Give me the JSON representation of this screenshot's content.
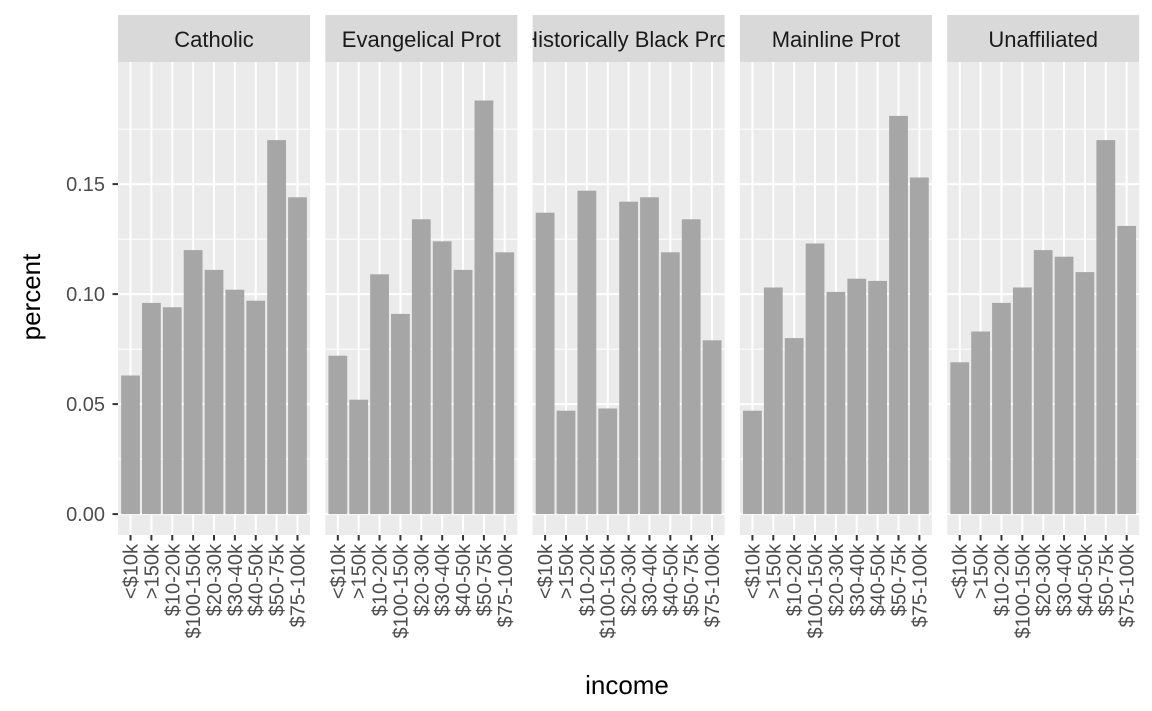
{
  "chart_data": {
    "type": "bar",
    "facet_by": "religion",
    "panels": [
      {
        "label": "Catholic",
        "values": [
          0.063,
          0.096,
          0.094,
          0.12,
          0.111,
          0.102,
          0.097,
          0.17,
          0.144
        ]
      },
      {
        "label": "Evangelical Prot",
        "values": [
          0.072,
          0.052,
          0.109,
          0.091,
          0.134,
          0.124,
          0.111,
          0.188,
          0.119
        ]
      },
      {
        "label": "Historically Black Prot",
        "values": [
          0.137,
          0.047,
          0.147,
          0.048,
          0.142,
          0.144,
          0.119,
          0.134,
          0.079
        ]
      },
      {
        "label": "Mainline Prot",
        "values": [
          0.047,
          0.103,
          0.08,
          0.123,
          0.101,
          0.107,
          0.106,
          0.181,
          0.153
        ]
      },
      {
        "label": "Unaffiliated",
        "values": [
          0.069,
          0.083,
          0.096,
          0.103,
          0.12,
          0.117,
          0.11,
          0.17,
          0.131
        ]
      }
    ],
    "categories": [
      "<$10k",
      ">150k",
      "$10-20k",
      "$100-150k",
      "$20-30k",
      "$30-40k",
      "$40-50k",
      "$50-75k",
      "$75-100k"
    ],
    "yticks": [
      {
        "value": 0.0,
        "label": "0.00"
      },
      {
        "value": 0.05,
        "label": "0.05"
      },
      {
        "value": 0.1,
        "label": "0.10"
      },
      {
        "value": 0.15,
        "label": "0.15"
      }
    ],
    "ylim": [
      -0.0095,
      0.2055
    ],
    "xlabel": "income",
    "ylabel": "percent",
    "bar_color": "#a6a6a6",
    "panel_background": "#ebebeb",
    "strip_background": "#d9d9d9",
    "grid": true,
    "legend": "none"
  }
}
